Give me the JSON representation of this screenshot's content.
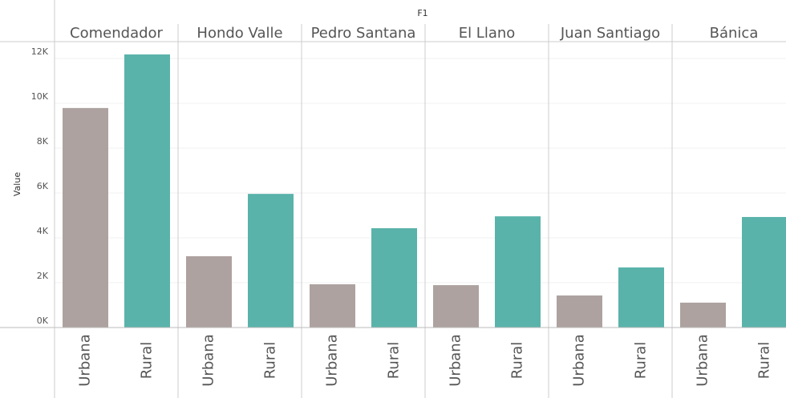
{
  "chart_data": {
    "type": "bar",
    "title": "F1",
    "y_label": "Value",
    "categories": [
      "Comendador",
      "Hondo Valle",
      "Pedro Santana",
      "El Llano",
      "Juan Santiago",
      "Bánica"
    ],
    "series": [
      {
        "name": "Urbana",
        "color": "#ada29f",
        "values": [
          9790,
          3180,
          1930,
          1890,
          1430,
          1110
        ]
      },
      {
        "name": "Rural",
        "color": "#5ab3aa",
        "values": [
          12180,
          5960,
          4430,
          4960,
          2680,
          4930
        ]
      }
    ],
    "ylim": [
      0,
      12750
    ],
    "yticks": [
      {
        "value": 0,
        "label": "0K"
      },
      {
        "value": 2000,
        "label": "2K"
      },
      {
        "value": 4000,
        "label": "4K"
      },
      {
        "value": 6000,
        "label": "6K"
      },
      {
        "value": 8000,
        "label": "8K"
      },
      {
        "value": 10000,
        "label": "10K"
      },
      {
        "value": 12000,
        "label": "12K"
      }
    ],
    "grid": true
  }
}
